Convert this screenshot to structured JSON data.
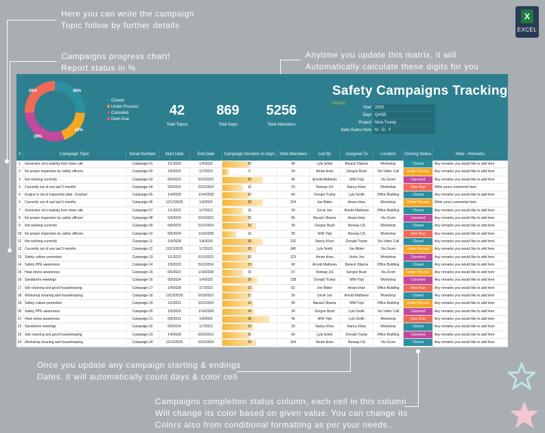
{
  "annotations": {
    "topic": [
      "Here you can write the campaign",
      "Topic follow by further details"
    ],
    "chart": [
      "Campaigns progress chart!",
      "Report status in %"
    ],
    "matrix": [
      "Anytime you update this matrix, it will",
      "Automatically calculate these digits for you"
    ],
    "dates": [
      "Once you update any campaign starting & endings",
      "Dates, it will automatically count days & color cell"
    ],
    "status": [
      "Campaigns completion status column, each cell in this column",
      "Will change its color based on given value. You can change its",
      "Colors also from conditional formatting as per your needs.."
    ]
  },
  "excel_icon": {
    "letter": "X",
    "label": "EXCEL"
  },
  "title": "Safety Campaigns Tracking",
  "setting_label": "Setting",
  "info": [
    {
      "k": "Year",
      "v": "2022"
    },
    {
      "k": "Dept",
      "v": "QHSE"
    },
    {
      "k": "Project",
      "v": "Nina Trump"
    },
    {
      "k": "Date Rules Here",
      "v": "M - D - Y"
    }
  ],
  "stats": [
    {
      "value": "42",
      "label": "Total Topics"
    },
    {
      "value": "869",
      "label": "Total Days"
    },
    {
      "value": "5256",
      "label": "Total Attendees"
    }
  ],
  "chart_data": {
    "type": "pie",
    "categories": [
      "Closed",
      "Under Process",
      "Canceled",
      "Over-Due"
    ],
    "values": [
      26,
      19,
      29,
      26
    ],
    "slice_labels": [
      "26%",
      "19%",
      "29%",
      "26%"
    ],
    "colors": [
      "#2a8fa0",
      "#f6a623",
      "#c2499b",
      "#f26a57"
    ]
  },
  "status_colors": {
    "Closed": "#2a8fa0",
    "Under Process": "#f6a623",
    "Canceled": "#c2499b",
    "Over-Due": "#f26a57"
  },
  "columns": [
    "#",
    "Campaign Topic",
    "Serial Number",
    "Start Date",
    "End Date",
    "Campaign Duration In Days",
    "Total Attendees",
    "Led By",
    "Assigned To",
    "Location",
    "Closing Status",
    "Note - Remarks"
  ],
  "rows": [
    [
      "1",
      "Generator oil is leaking from down site",
      "Campaign-01",
      "1/1/2025",
      "1/4/2025",
      "20",
      "90",
      "Lyla Smith",
      "Barack Obama",
      "Workshop",
      "Closed",
      "Any remarks you would like to add here"
    ],
    [
      "2",
      "No proper inspection by safety officers",
      "Campaign-02",
      "1/5/2023",
      "1/7/2023",
      "5",
      "34",
      "Aman khan",
      "Gorgoe Bush",
      "Via Video Call",
      "Under Process",
      "Any remarks you would like to add here"
    ],
    [
      "3",
      "Not working currently",
      "Campaign-03",
      "6/6/2023",
      "6/10/2023",
      "30",
      "45",
      "Arnold Mathews",
      "WW-Tripl",
      "Via Zoom",
      "Canceled",
      "Any remarks you would like to add here"
    ],
    [
      "4",
      "Currently out of use last 5 months",
      "Campaign-04",
      "5/5/2024",
      "5/12/2024",
      "15",
      "23",
      "Norway US",
      "Nancy Khan",
      "Workshop",
      "Over-Due",
      "Write yours comments here"
    ],
    [
      "5",
      "Engine is out of inspection date - Expired",
      "Campaign-05",
      "1/4/2028",
      "1/14/2028",
      "20",
      "64",
      "Donald Trump",
      "Lyla Smith",
      "Office Building",
      "Closed",
      "Any remarks you would like to add here"
    ],
    [
      "6",
      "Currently out of use last 5 months",
      "Campaign-06",
      "12/12/2025",
      "1/4/2025",
      "30",
      "324",
      "Joe Biden",
      "Aman khan",
      "Workshop",
      "Under Process",
      "Write yours comments here"
    ],
    [
      "7",
      "Generator oil is leaking from down site",
      "Campaign-07",
      "1/1/2023",
      "1/7/2023",
      "15",
      "34",
      "Uncle Joe",
      "Arnold Mathews",
      "Office Building",
      "Closed",
      "Any remarks you would like to add here"
    ],
    [
      "8",
      "No proper inspection by safety officers",
      "Campaign-08",
      "5/5/2024",
      "6/10/2023",
      "20",
      "56",
      "Barack Obama",
      "Aman khan",
      "Via Zoom",
      "Canceled",
      "Any remarks you would like to add here"
    ],
    [
      "9",
      "Not working currently",
      "Campaign-09",
      "6/6/2023",
      "5/12/2024",
      "25",
      "34",
      "Gorgoe Bush",
      "Norway US",
      "Workshop",
      "Closed",
      "Any remarks you would like to add here"
    ],
    [
      "10",
      "No proper inspection by safety officers",
      "Campaign-10",
      "5/5/2024",
      "1/14/2028",
      "10",
      "90",
      "WW-Tripl",
      "Norway US",
      "Workshop",
      "Over-Due",
      "Any remarks you would like to add here"
    ],
    [
      "11",
      "Not working currently",
      "Campaign-11",
      "1/4/2028",
      "1/4/2025",
      "30",
      "232",
      "Nancy Khan",
      "Donald Trump",
      "Via Video Call",
      "Closed",
      "Any remarks you would like to add here"
    ],
    [
      "12",
      "Currently out of use last 5 months",
      "Campaign-12",
      "12/12/2025",
      "1/7/2023",
      "25",
      "345",
      "Lyla Smith",
      "Joe Biden",
      "Via Zoom",
      "Under Process",
      "Any remarks you would like to add here"
    ],
    [
      "13",
      "Safety culture promotion",
      "Campaign-13",
      "1/1/2023",
      "6/10/2023",
      "20",
      "123",
      "Aman khan",
      "Uncle Joe",
      "Workshop",
      "Canceled",
      "Any remarks you would like to add here"
    ],
    [
      "14",
      "Safety PPE awareness",
      "Campaign-14",
      "1/5/2023",
      "5/12/2024",
      "23",
      "90",
      "Arnold Mathews",
      "Barack Obama",
      "Office Building",
      "Closed",
      "Any remarks you would like to add here"
    ],
    [
      "15",
      "Heat stress awareness",
      "Campaign-15",
      "6/6/2023",
      "1/14/2028",
      "15",
      "67",
      "Norway US",
      "Gorgoe Bush",
      "Via Zoom",
      "Under Process",
      "Any remarks you would like to add here"
    ],
    [
      "16",
      "Sandstorm meetings",
      "Campaign-16",
      "5/5/2024",
      "1/4/2025",
      "26",
      "128",
      "Donald Trump",
      "WW-Tripl",
      "Workshop",
      "Canceled",
      "Any remarks you would like to add here"
    ],
    [
      "17",
      "Site cleaning and good housekeeping",
      "Campaign-17",
      "1/4/2028",
      "1/7/2023",
      "23",
      "52",
      "Joe Biden",
      "Aman khan",
      "Office Building",
      "Over-Due",
      "Any remarks you would like to add here"
    ],
    [
      "18",
      "Workshop cleaning and housekeeping",
      "Campaign-18",
      "12/12/2025",
      "6/10/2023",
      "21",
      "26",
      "Uncle Joe",
      "Arnold Mathews",
      "Workshop",
      "Closed",
      "Any remarks you would like to add here"
    ],
    [
      "19",
      "Safety culture promotion",
      "Campaign-19",
      "1/1/2023",
      "5/12/2024",
      "23",
      "90",
      "Barack Obama",
      "WW-Tripl",
      "Office Building",
      "Under Process",
      "Any remarks you would like to add here"
    ],
    [
      "20",
      "Safety PPE awareness",
      "Campaign-20",
      "1/5/2023",
      "1/14/2028",
      "24",
      "34",
      "Gorgoe Bush",
      "Lyla Smith",
      "Via Video Call",
      "Canceled",
      "Any remarks you would like to add here"
    ],
    [
      "21",
      "Heat stress awareness",
      "Campaign-21",
      "6/6/2023",
      "1/4/2025",
      "35",
      "45",
      "WW-Tripl",
      "Lyla Smith",
      "Workshop",
      "Over-Due",
      "Any remarks you would like to add here"
    ],
    [
      "22",
      "Sandstorm meetings",
      "Campaign-22",
      "5/5/2024",
      "1/7/2023",
      "23",
      "23",
      "Nancy Khan",
      "Nancy Khan",
      "Workshop",
      "Closed",
      "Any remarks you would like to add here"
    ],
    [
      "23",
      "Site cleaning and good housekeeping",
      "Campaign-23",
      "1/4/2028",
      "6/10/2023",
      "20",
      "64",
      "Lyla Smith",
      "Donald Trump",
      "Office Building",
      "Canceled",
      "Any remarks you would like to add here"
    ],
    [
      "24",
      "Workshop cleaning and housekeeping",
      "Campaign-24",
      "12/12/2025",
      "5/12/2024",
      "25",
      "324",
      "Aman khan",
      "Norway US",
      "Via Zoom",
      "Closed",
      "Any remarks you would like to add here"
    ]
  ]
}
